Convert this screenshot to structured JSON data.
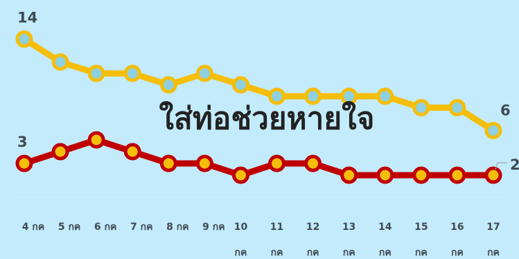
{
  "chart_data": {
    "type": "line",
    "title": "ใส่ท่อช่วยหายใจ",
    "categories": [
      [
        "4",
        "กค"
      ],
      [
        "5",
        "กค"
      ],
      [
        "6",
        "กค"
      ],
      [
        "7",
        "กค"
      ],
      [
        "8",
        "กค"
      ],
      [
        "9",
        "กค"
      ],
      [
        "10",
        "กค"
      ],
      [
        "11",
        "กค"
      ],
      [
        "12",
        "กค"
      ],
      [
        "13",
        "กค"
      ],
      [
        "14",
        "กค"
      ],
      [
        "15",
        "กค"
      ],
      [
        "16",
        "กค"
      ],
      [
        "17",
        "กค"
      ]
    ],
    "series": [
      {
        "values": [
          14,
          12,
          11,
          11,
          10,
          11,
          10,
          9,
          9,
          9,
          9,
          8,
          8,
          6
        ],
        "color": "#f5be0b",
        "marker_fill": "#8ed0df",
        "labels": {
          "first": "14",
          "last": "6"
        }
      },
      {
        "values": [
          3,
          4,
          5,
          4,
          3,
          3,
          2,
          3,
          3,
          2,
          2,
          2,
          2,
          2
        ],
        "color": "#c00000",
        "marker_fill": "#f5be0b",
        "labels": {
          "first": "3",
          "last": "2"
        }
      }
    ],
    "ylim": [
      0,
      16
    ],
    "grid": false,
    "legend": "none"
  }
}
